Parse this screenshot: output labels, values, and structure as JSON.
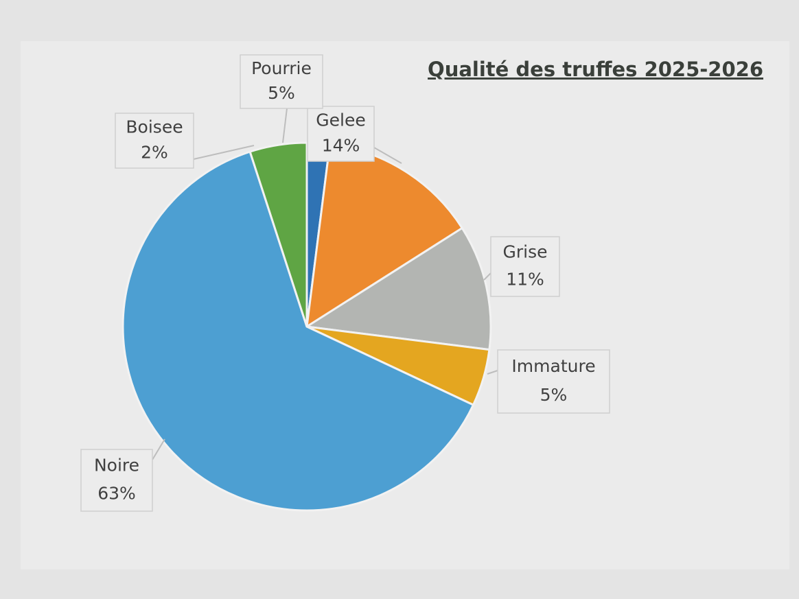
{
  "chart_data": {
    "type": "pie",
    "title": "Qualité des truffes 2025-2026",
    "categories": [
      "Boisee",
      "Gelee",
      "Grise",
      "Immature",
      "Noire",
      "Pourrie"
    ],
    "values": [
      2,
      14,
      11,
      5,
      63,
      5
    ],
    "value_labels": [
      "2%",
      "14%",
      "11%",
      "5%",
      "63%",
      "5%"
    ],
    "colors": [
      "#2f73b4",
      "#ed8a2e",
      "#b3b5b2",
      "#e4a620",
      "#4d9fd2",
      "#5fa544"
    ]
  }
}
